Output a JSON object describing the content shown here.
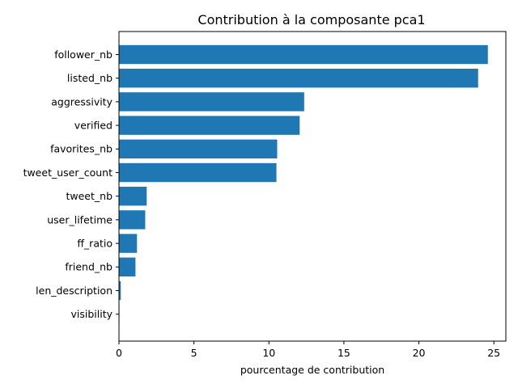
{
  "chart_data": {
    "type": "bar",
    "orientation": "horizontal",
    "title": "Contribution à la composante pca1",
    "xlabel": "pourcentage de contribution",
    "ylabel": "",
    "categories": [
      "follower_nb",
      "listed_nb",
      "aggressivity",
      "verified",
      "favorites_nb",
      "tweet_user_count",
      "tweet_nb",
      "user_lifetime",
      "ff_ratio",
      "friend_nb",
      "len_description",
      "visibility"
    ],
    "values": [
      24.6,
      23.95,
      12.35,
      12.05,
      10.55,
      10.5,
      1.85,
      1.75,
      1.2,
      1.1,
      0.12,
      0.03
    ],
    "xlim": [
      0,
      25.8
    ],
    "xticks": [
      0,
      5,
      10,
      15,
      20,
      25
    ],
    "grid": false,
    "bar_color": "#1f77b4"
  }
}
